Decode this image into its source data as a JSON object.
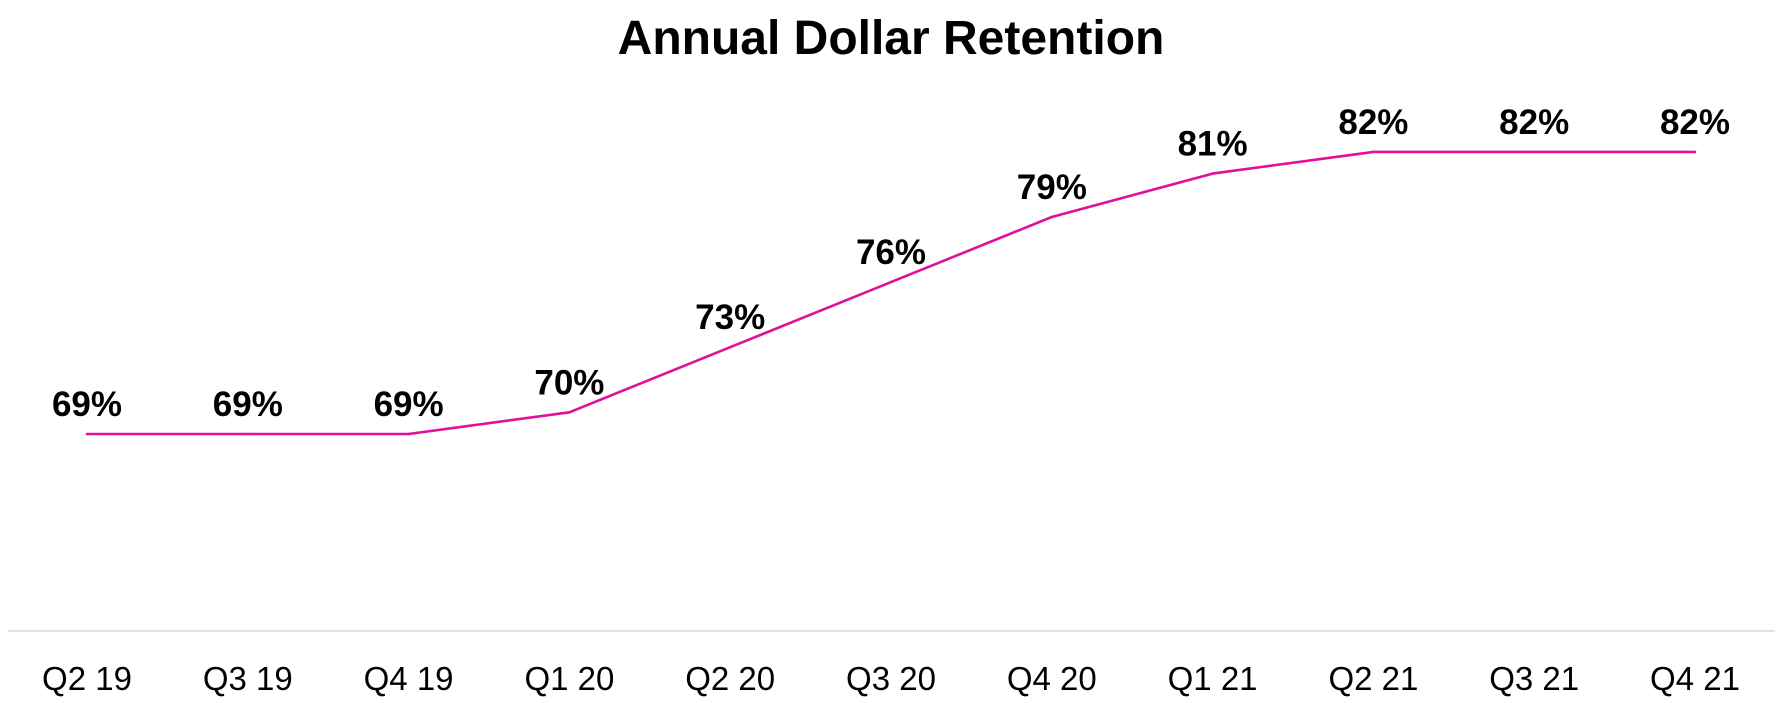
{
  "chart_data": {
    "type": "line",
    "title": "Annual Dollar Retention",
    "xlabel": "",
    "ylabel": "",
    "categories": [
      "Q2 19",
      "Q3 19",
      "Q4 19",
      "Q1 20",
      "Q2 20",
      "Q3 20",
      "Q4 20",
      "Q1 21",
      "Q2 21",
      "Q3 21",
      "Q4 21"
    ],
    "series": [
      {
        "values": [
          69,
          69,
          69,
          70,
          73,
          76,
          79,
          81,
          82,
          82,
          82
        ],
        "data_labels": [
          "69%",
          "69%",
          "69%",
          "70%",
          "73%",
          "76%",
          "79%",
          "81%",
          "82%",
          "82%",
          "82%"
        ]
      }
    ],
    "ylim": [
      60,
      85
    ],
    "grid": false,
    "legend": "none",
    "colors": {
      "line": "#e0109b",
      "axis": "#d9d9d9",
      "text": "#000000"
    }
  }
}
